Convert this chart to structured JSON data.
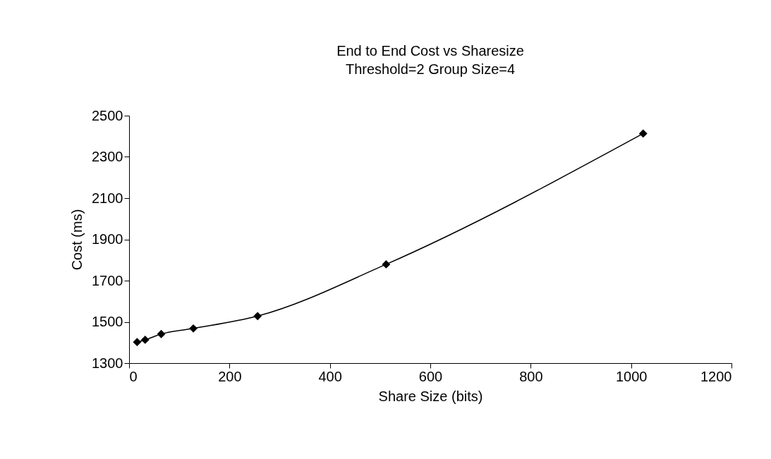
{
  "chart_data": {
    "type": "line",
    "title": "End to End Cost vs Sharesize",
    "subtitle": "Threshold=2 Group Size=4",
    "xlabel": "Share Size (bits)",
    "ylabel": "Cost (ms)",
    "x": [
      16,
      32,
      64,
      128,
      256,
      512,
      1024
    ],
    "series": [
      {
        "color": "#000000",
        "values": [
          1402,
          1413,
          1441,
          1468,
          1528,
          1779,
          2413
        ]
      }
    ],
    "xlim": [
      0,
      1200
    ],
    "xticks": [
      0,
      200,
      400,
      600,
      800,
      1000,
      1200
    ],
    "ylim": [
      1300,
      2500
    ],
    "yticks": [
      1300,
      1500,
      1700,
      1900,
      2100,
      2300,
      2500
    ],
    "grid": false,
    "marker": "diamond",
    "line_style": "solid"
  }
}
